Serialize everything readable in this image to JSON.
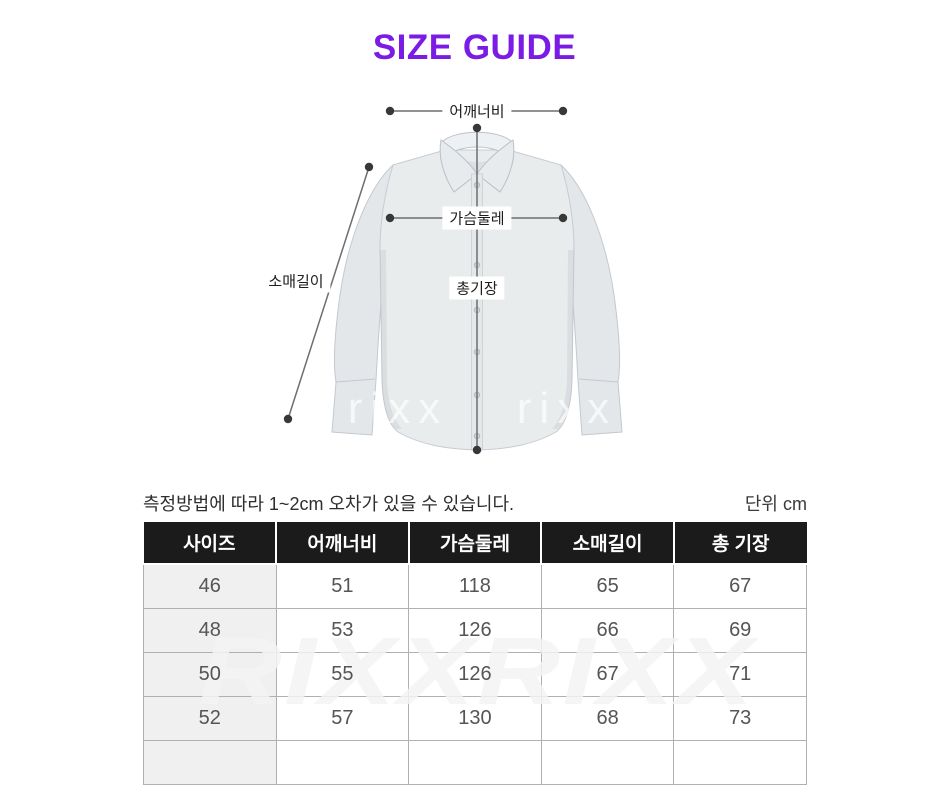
{
  "title": "SIZE GUIDE",
  "colors": {
    "accent": "#7A1CE5",
    "table_header_bg": "#1B1B1B",
    "table_header_text": "#FFFFFF",
    "size_column_bg": "#F0F0F0",
    "cell_border": "#B0B0B0"
  },
  "diagram": {
    "labels": {
      "shoulder": "어깨너비",
      "chest": "가슴둘레",
      "sleeve": "소매길이",
      "length": "총기장"
    },
    "watermark": "rixx"
  },
  "note": {
    "tolerance": "측정방법에 따라 1~2cm 오차가 있을 수 있습니다.",
    "unit": "단위 cm"
  },
  "table": {
    "watermark": "RIXXRIXX",
    "headers": [
      "사이즈",
      "어깨너비",
      "가슴둘레",
      "소매길이",
      "총 기장"
    ],
    "rows": [
      [
        "46",
        "51",
        "118",
        "65",
        "67"
      ],
      [
        "48",
        "53",
        "126",
        "66",
        "69"
      ],
      [
        "50",
        "55",
        "126",
        "67",
        "71"
      ],
      [
        "52",
        "57",
        "130",
        "68",
        "73"
      ],
      [
        "",
        "",
        "",
        "",
        ""
      ]
    ]
  }
}
